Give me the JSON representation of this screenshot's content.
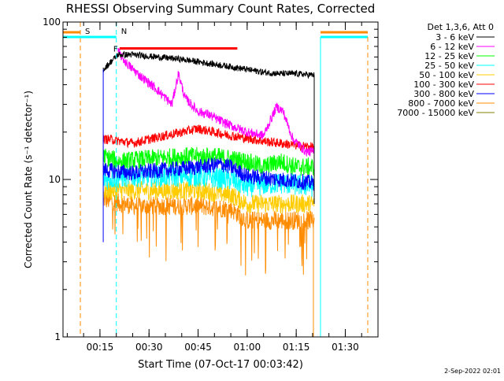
{
  "chart_data": {
    "type": "line",
    "title": "RHESSI Observing Summary Count Rates, Corrected",
    "xlabel": "Start Time (07-Oct-17 00:03:42)",
    "ylabel": "Corrected Count Rate (s⁻¹ detector⁻¹)",
    "xlim": [
      "00:03:42",
      "01:40:00"
    ],
    "ylim": [
      1,
      100
    ],
    "yscale": "log",
    "grid": false,
    "legend_position": "top-right",
    "legend_header": "Det 1,3,6, Att 0",
    "x_ticks": [
      "00:15",
      "00:30",
      "00:45",
      "01:00",
      "01:15",
      "01:30"
    ],
    "y_ticks": [
      "1",
      "10",
      "100"
    ],
    "data_window": [
      "00:16:00",
      "01:20:30"
    ],
    "series": [
      {
        "name": "3 - 6 keV",
        "color": "#000000",
        "x": [
          "00:16:00",
          "00:20:30",
          "00:25:00",
          "00:40:00",
          "00:55:00",
          "01:05:00",
          "01:10:00",
          "01:15:00",
          "01:20:30"
        ],
        "values": [
          50,
          62,
          62,
          58,
          52,
          48,
          47,
          47,
          46
        ]
      },
      {
        "name": "6 - 12 keV",
        "color": "#ff00ff",
        "x": [
          "00:20:30",
          "00:23:00",
          "00:27:00",
          "00:32:00",
          "00:37:00",
          "00:39:00",
          "00:41:00",
          "00:45:00",
          "00:48:00",
          "00:51:00",
          "00:55:00",
          "01:00:00",
          "01:05:00",
          "01:09:00",
          "01:11:00",
          "01:14:00",
          "01:18:00",
          "01:20:30"
        ],
        "values": [
          65,
          55,
          46,
          38,
          30,
          47,
          33,
          27,
          26,
          24,
          22,
          20,
          19,
          29,
          27,
          18,
          15,
          15
        ]
      },
      {
        "name": "12 - 25 keV",
        "color": "#00ff00",
        "x": [
          "00:16:00",
          "00:21:00",
          "00:30:00",
          "00:40:00",
          "00:50:00",
          "00:55:00",
          "01:00:00",
          "01:05:00",
          "01:10:00",
          "01:15:00",
          "01:20:30"
        ],
        "values": [
          14,
          13,
          13.5,
          14,
          14,
          13.5,
          13,
          12,
          13,
          12,
          12
        ]
      },
      {
        "name": "25 - 50 keV",
        "color": "#00ffff",
        "x": [
          "00:16:00",
          "00:25:00",
          "00:35:00",
          "00:45:00",
          "00:55:00",
          "01:00:00",
          "01:10:00",
          "01:20:30"
        ],
        "values": [
          10,
          10.5,
          10.5,
          10.5,
          10,
          9,
          9.5,
          9
        ]
      },
      {
        "name": "50 - 100 keV",
        "color": "#ffcc00",
        "x": [
          "00:16:00",
          "00:25:00",
          "00:35:00",
          "00:45:00",
          "00:55:00",
          "01:00:00",
          "01:10:00",
          "01:20:30"
        ],
        "values": [
          8.5,
          8.5,
          8.5,
          8.5,
          8,
          7,
          7,
          7
        ]
      },
      {
        "name": "100 - 300 keV",
        "color": "#ff0000",
        "x": [
          "00:16:00",
          "00:18:00",
          "00:25:00",
          "00:35:00",
          "00:45:00",
          "00:55:00",
          "01:05:00",
          "01:15:00",
          "01:20:30"
        ],
        "values": [
          18,
          18,
          17,
          19,
          21,
          19,
          17.5,
          16.5,
          16
        ]
      },
      {
        "name": "300 - 800 keV",
        "color": "#0000ff",
        "x": [
          "00:16:00",
          "00:25:00",
          "00:35:00",
          "00:45:00",
          "00:52:00",
          "00:55:00",
          "01:00:00",
          "01:10:00",
          "01:20:30"
        ],
        "values": [
          11.5,
          11,
          11.5,
          12,
          12.5,
          12,
          10.5,
          10,
          9.5
        ]
      },
      {
        "name": "800 - 7000 keV",
        "color": "#ff8c00",
        "x": [
          "00:16:00",
          "00:25:00",
          "00:35:00",
          "00:45:00",
          "00:55:00",
          "01:00:00",
          "01:10:00",
          "01:20:30"
        ],
        "values": [
          7.5,
          6.8,
          6.8,
          6.8,
          6.5,
          5.5,
          5.5,
          5.5
        ]
      },
      {
        "name": "7000 - 15000 keV",
        "color": "#808000",
        "x": [],
        "values": []
      }
    ],
    "annotations": [
      {
        "label": "S",
        "color": "#ff8c00",
        "x": "00:09:00",
        "kind": "saa"
      },
      {
        "label": "N",
        "color": "#00ffff",
        "x": "00:20:00",
        "kind": "night"
      },
      {
        "label": "F",
        "color": "#ff0000",
        "x_start": "00:21:00",
        "x_end": "00:57:00",
        "kind": "flare"
      }
    ],
    "footer": "2-Sep-2022 02:01"
  }
}
